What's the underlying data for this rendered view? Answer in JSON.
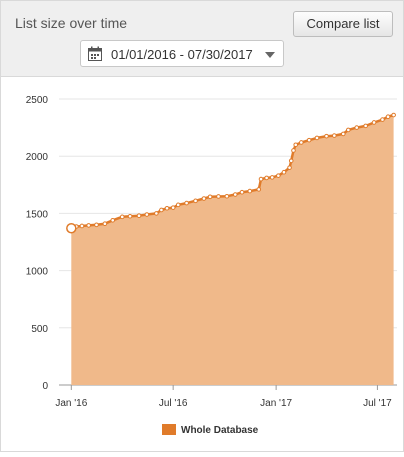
{
  "header": {
    "title": "List size over time",
    "compare_label": "Compare list",
    "date_range": "01/01/2016 - 07/30/2017"
  },
  "colors": {
    "series": "#e07b2a",
    "fill": "#f0b98a",
    "header_bg": "#efefef"
  },
  "chart_data": {
    "type": "area",
    "title": "",
    "xlabel": "",
    "ylabel": "",
    "ylim": [
      0,
      2500
    ],
    "y_ticks": [
      0,
      500,
      1000,
      1500,
      2000,
      2500
    ],
    "x_ticks": [
      {
        "x": "2016-01-01",
        "label": "Jan '16"
      },
      {
        "x": "2016-07-01",
        "label": "Jul '16"
      },
      {
        "x": "2017-01-01",
        "label": "Jan '17"
      },
      {
        "x": "2017-07-01",
        "label": "Jul '17"
      }
    ],
    "xlim": [
      "2015-12-10",
      "2017-08-05"
    ],
    "grid": "horizontal",
    "legend": "bottom",
    "series": [
      {
        "name": "Whole Database",
        "points": [
          [
            "2016-01-01",
            1370
          ],
          [
            "2016-01-10",
            1385
          ],
          [
            "2016-01-20",
            1390
          ],
          [
            "2016-02-01",
            1395
          ],
          [
            "2016-02-15",
            1400
          ],
          [
            "2016-03-01",
            1410
          ],
          [
            "2016-03-15",
            1440
          ],
          [
            "2016-04-01",
            1470
          ],
          [
            "2016-04-15",
            1475
          ],
          [
            "2016-05-01",
            1480
          ],
          [
            "2016-05-15",
            1490
          ],
          [
            "2016-06-01",
            1500
          ],
          [
            "2016-06-10",
            1530
          ],
          [
            "2016-06-20",
            1545
          ],
          [
            "2016-07-01",
            1550
          ],
          [
            "2016-07-10",
            1575
          ],
          [
            "2016-07-25",
            1590
          ],
          [
            "2016-08-10",
            1610
          ],
          [
            "2016-08-25",
            1630
          ],
          [
            "2016-09-05",
            1645
          ],
          [
            "2016-09-20",
            1648
          ],
          [
            "2016-10-05",
            1650
          ],
          [
            "2016-10-20",
            1665
          ],
          [
            "2016-11-01",
            1685
          ],
          [
            "2016-11-15",
            1695
          ],
          [
            "2016-12-01",
            1710
          ],
          [
            "2016-12-05",
            1800
          ],
          [
            "2016-12-15",
            1810
          ],
          [
            "2016-12-25",
            1815
          ],
          [
            "2017-01-05",
            1830
          ],
          [
            "2017-01-15",
            1860
          ],
          [
            "2017-01-25",
            1900
          ],
          [
            "2017-01-28",
            1960
          ],
          [
            "2017-02-01",
            2050
          ],
          [
            "2017-02-05",
            2100
          ],
          [
            "2017-02-15",
            2120
          ],
          [
            "2017-03-01",
            2140
          ],
          [
            "2017-03-15",
            2160
          ],
          [
            "2017-04-01",
            2175
          ],
          [
            "2017-04-15",
            2180
          ],
          [
            "2017-05-01",
            2195
          ],
          [
            "2017-05-10",
            2230
          ],
          [
            "2017-05-25",
            2250
          ],
          [
            "2017-06-10",
            2265
          ],
          [
            "2017-06-25",
            2295
          ],
          [
            "2017-07-10",
            2320
          ],
          [
            "2017-07-20",
            2345
          ],
          [
            "2017-07-30",
            2360
          ]
        ]
      }
    ]
  }
}
